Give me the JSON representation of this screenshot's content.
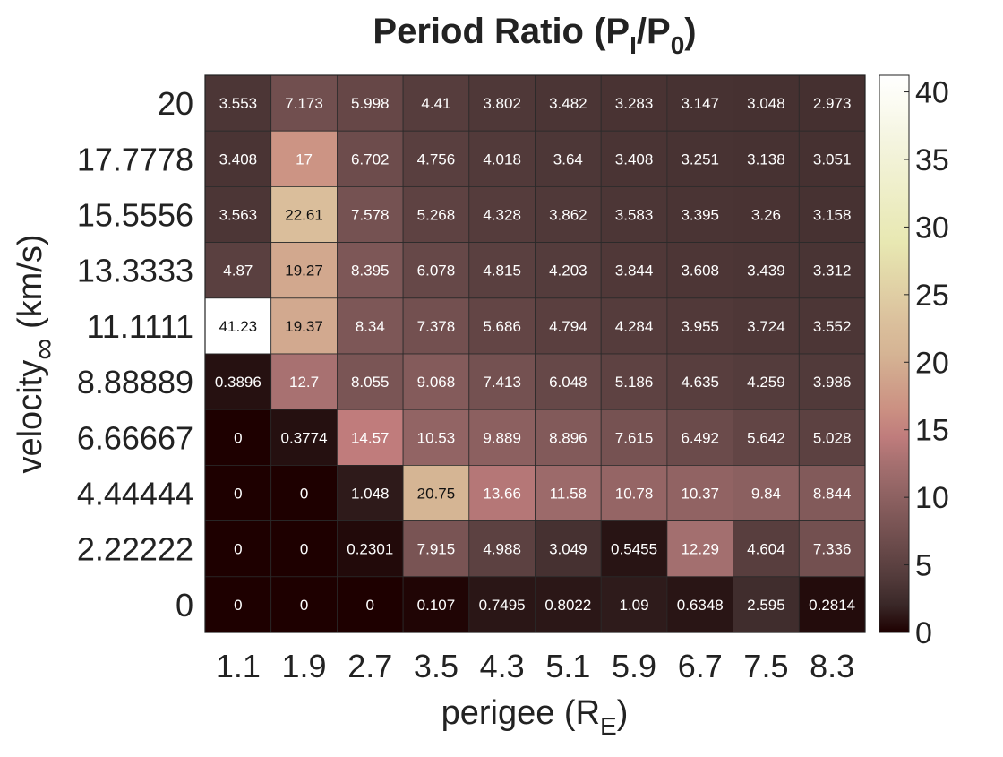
{
  "chart_data": {
    "type": "heatmap",
    "title": "Period Ratio (P",
    "title_sub1": "I",
    "title_mid": "/P",
    "title_sub2": "0",
    "title_end": ")",
    "xlabel": "perigee (R",
    "xlabel_sub": "E",
    "xlabel_end": ")",
    "ylabel": "velocity",
    "ylabel_sub": "∞",
    "ylabel_end": " (km/s)",
    "x_categories": [
      "1.1",
      "1.9",
      "2.7",
      "3.5",
      "4.3",
      "5.1",
      "5.9",
      "6.7",
      "7.5",
      "8.3"
    ],
    "y_categories": [
      "20",
      "17.7778",
      "15.5556",
      "13.3333",
      "11.1111",
      "8.88889",
      "6.66667",
      "4.44444",
      "2.22222",
      "0"
    ],
    "cell_labels": [
      [
        "3.553",
        "7.173",
        "5.998",
        "4.41",
        "3.802",
        "3.482",
        "3.283",
        "3.147",
        "3.048",
        "2.973"
      ],
      [
        "3.408",
        "17",
        "6.702",
        "4.756",
        "4.018",
        "3.64",
        "3.408",
        "3.251",
        "3.138",
        "3.051"
      ],
      [
        "3.563",
        "22.61",
        "7.578",
        "5.268",
        "4.328",
        "3.862",
        "3.583",
        "3.395",
        "3.26",
        "3.158"
      ],
      [
        "4.87",
        "19.27",
        "8.395",
        "6.078",
        "4.815",
        "4.203",
        "3.844",
        "3.608",
        "3.439",
        "3.312"
      ],
      [
        "41.23",
        "19.37",
        "8.34",
        "7.378",
        "5.686",
        "4.794",
        "4.284",
        "3.955",
        "3.724",
        "3.552"
      ],
      [
        "0.3896",
        "12.7",
        "8.055",
        "9.068",
        "7.413",
        "6.048",
        "5.186",
        "4.635",
        "4.259",
        "3.986"
      ],
      [
        "0",
        "0.3774",
        "14.57",
        "10.53",
        "9.889",
        "8.896",
        "7.615",
        "6.492",
        "5.642",
        "5.028"
      ],
      [
        "0",
        "0",
        "1.048",
        "20.75",
        "13.66",
        "11.58",
        "10.78",
        "10.37",
        "9.84",
        "8.844"
      ],
      [
        "0",
        "0",
        "0.2301",
        "7.915",
        "4.988",
        "3.049",
        "0.5455",
        "12.29",
        "4.604",
        "7.336"
      ],
      [
        "0",
        "0",
        "0",
        "0.107",
        "0.7495",
        "0.8022",
        "1.09",
        "0.6348",
        "2.595",
        "0.2814"
      ]
    ],
    "colorbar": {
      "range": [
        0,
        41.23
      ],
      "ticks": [
        "0",
        "5",
        "10",
        "15",
        "20",
        "25",
        "30",
        "35",
        "40"
      ],
      "colormap": "pink"
    },
    "grid": true,
    "legend": "colorbar-right"
  }
}
